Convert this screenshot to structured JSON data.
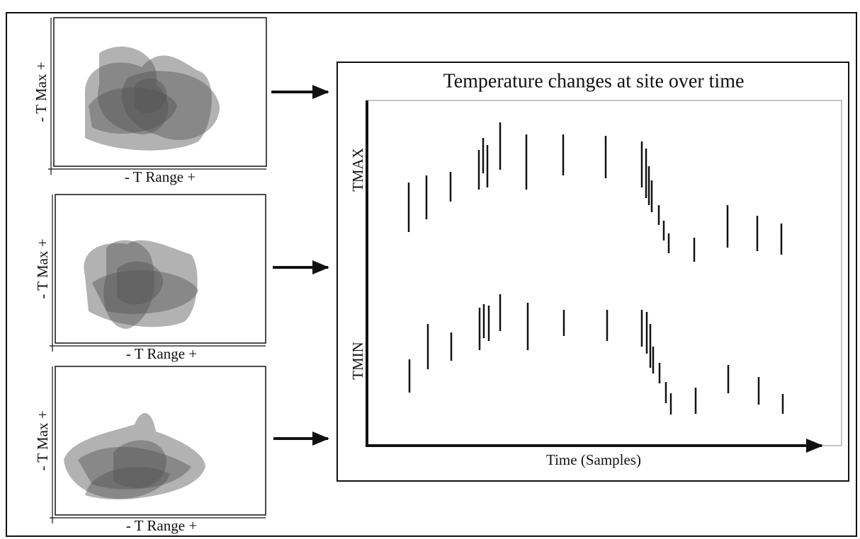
{
  "panels": [
    {
      "y_label": "- T Max +",
      "x_label": "- T Range +"
    },
    {
      "y_label": "- T Max +",
      "x_label": "- T Range +"
    },
    {
      "y_label": "- T Max +",
      "x_label": "- T Range +"
    }
  ],
  "main": {
    "title": "Temperature changes at site over time",
    "top_label": "TMAX",
    "bottom_label": "TMIN",
    "x_label": "Time (Samples)"
  }
}
